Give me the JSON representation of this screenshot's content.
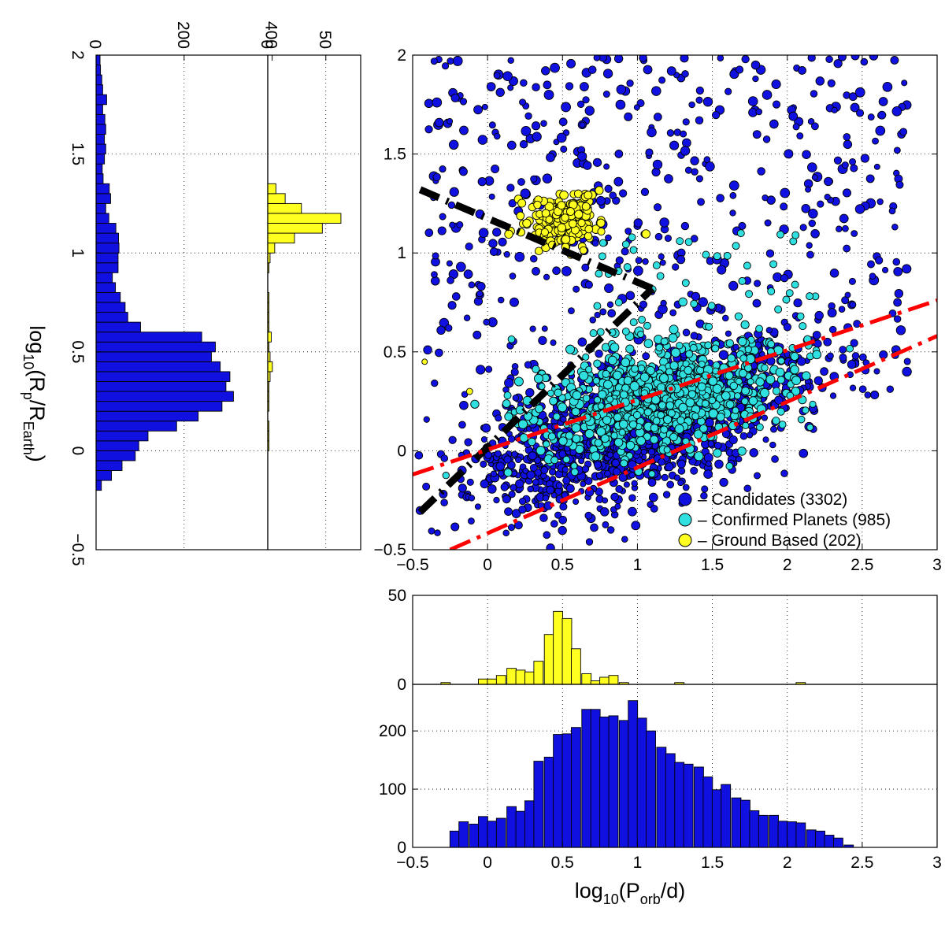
{
  "figure": {
    "ylabel": {
      "pre": "log",
      "sub1": "10",
      "mid": "(R",
      "sub2": "p",
      "mid2": "/R",
      "sub3": "Earth",
      "post": ")"
    },
    "xlabel": {
      "pre": "log",
      "sub1": "10",
      "mid": "(P",
      "sub2": "orb",
      "post": "/d)"
    }
  },
  "chart_data": [
    {
      "id": "scatter",
      "type": "scatter",
      "xlim": [
        -0.5,
        3
      ],
      "ylim": [
        -0.5,
        2
      ],
      "xticks": [
        "-0.5",
        "0",
        "0.5",
        "1",
        "1.5",
        "2",
        "2.5",
        "3"
      ],
      "yticks": [
        "-0.5",
        "0",
        "0.5",
        "1",
        "1.5",
        "2"
      ],
      "grid": true,
      "legend_position": "bottom-right",
      "series": [
        {
          "name": "Candidates (3302)",
          "color": "#1010e0",
          "count": 3302,
          "distribution": "broad cloud centred near x=1.0, y=0.3; scattered up to y=2"
        },
        {
          "name": "Confirmed Planets (985)",
          "color": "#30e0e0",
          "count": 985,
          "distribution": "concentrated near x=0.8-1.8, y=0.1-0.6"
        },
        {
          "name": "Ground Based (202)",
          "color": "#ffff20",
          "count": 202,
          "distribution": "tight cluster near x=0.45, y=1.15"
        }
      ],
      "legend": [
        {
          "color": "#1010e0",
          "label": "– Candidates (3302)"
        },
        {
          "color": "#30e0e0",
          "label": "– Confirmed Planets (985)"
        },
        {
          "color": "#ffff20",
          "label": "– Ground Based (202)"
        }
      ],
      "lines": [
        {
          "style": "black dash-dot",
          "color": "#000000",
          "points": [
            [
              -0.45,
              1.32
            ],
            [
              1.1,
              0.82
            ]
          ]
        },
        {
          "style": "black dash-dot",
          "color": "#000000",
          "points": [
            [
              -0.45,
              -0.31
            ],
            [
              1.1,
              0.82
            ]
          ]
        },
        {
          "style": "red dash-dot",
          "color": "#ff0000",
          "points": [
            [
              -0.5,
              -0.12
            ],
            [
              3,
              0.76
            ]
          ]
        },
        {
          "style": "red dash-dot",
          "color": "#ff0000",
          "points": [
            [
              -0.25,
              -0.5
            ],
            [
              3,
              0.58
            ]
          ]
        }
      ]
    },
    {
      "id": "hist-period-ground",
      "type": "bar",
      "color": "#ffff20",
      "xlim": [
        -0.5,
        3
      ],
      "ylim": [
        0,
        50
      ],
      "yticks": [
        "0",
        "50"
      ],
      "bin_width": 0.0625,
      "bin_centers": [
        -0.28,
        -0.03,
        0.03,
        0.09,
        0.16,
        0.22,
        0.28,
        0.34,
        0.41,
        0.47,
        0.53,
        0.59,
        0.66,
        0.72,
        0.78,
        0.84,
        0.91,
        1.28,
        2.09
      ],
      "values": [
        1,
        3,
        3,
        5,
        9,
        8,
        7,
        13,
        28,
        41,
        37,
        20,
        6,
        2,
        4,
        5,
        1,
        1,
        1
      ]
    },
    {
      "id": "hist-period-kepler",
      "type": "bar",
      "color": "#1010e0",
      "xlim": [
        -0.5,
        3
      ],
      "ylim": [
        0,
        280
      ],
      "yticks": [
        "0",
        "100",
        "200"
      ],
      "xticks": [
        "-0.5",
        "0",
        "0.5",
        "1",
        "1.5",
        "2",
        "2.5",
        "3"
      ],
      "bin_width": 0.0625,
      "bin_centers": [
        -0.22,
        -0.16,
        -0.09,
        -0.03,
        0.03,
        0.09,
        0.16,
        0.22,
        0.28,
        0.34,
        0.41,
        0.47,
        0.53,
        0.59,
        0.66,
        0.72,
        0.78,
        0.84,
        0.91,
        0.97,
        1.03,
        1.09,
        1.16,
        1.22,
        1.28,
        1.34,
        1.41,
        1.47,
        1.53,
        1.59,
        1.66,
        1.72,
        1.78,
        1.84,
        1.91,
        1.97,
        2.03,
        2.09,
        2.16,
        2.22,
        2.28,
        2.34,
        2.41,
        2.47,
        2.53,
        2.59,
        2.66,
        2.72,
        2.78
      ],
      "values": [
        28,
        44,
        40,
        53,
        45,
        50,
        70,
        62,
        80,
        148,
        155,
        194,
        195,
        206,
        237,
        237,
        224,
        226,
        218,
        252,
        222,
        200,
        172,
        161,
        146,
        143,
        138,
        121,
        99,
        108,
        85,
        81,
        63,
        55,
        55,
        45,
        44,
        42,
        30,
        28,
        21,
        16,
        4,
        0,
        0,
        0,
        0,
        0,
        0
      ]
    },
    {
      "id": "hist-radius-ground",
      "type": "bar",
      "orientation": "horizontal",
      "color": "#ffff20",
      "ylim": [
        -0.5,
        2
      ],
      "xlim": [
        0,
        80
      ],
      "ticks": [
        "0",
        "50"
      ],
      "bin_width": 0.05,
      "bin_centers": [
        0.025,
        0.075,
        0.125,
        0.225,
        0.275,
        0.325,
        0.375,
        0.425,
        0.475,
        0.525,
        0.575,
        0.625,
        0.675,
        0.725,
        0.775,
        0.825,
        0.875,
        0.925,
        0.975,
        1.025,
        1.075,
        1.125,
        1.175,
        1.225,
        1.275,
        1.325
      ],
      "values": [
        1,
        1,
        1,
        1,
        1,
        1,
        2,
        4,
        2,
        1,
        3,
        1,
        1,
        1,
        1,
        0,
        0,
        1,
        2,
        6,
        23,
        47,
        63,
        29,
        15,
        7
      ]
    },
    {
      "id": "hist-radius-kepler",
      "type": "bar",
      "orientation": "horizontal",
      "color": "#1010e0",
      "ylim": [
        -0.5,
        2
      ],
      "xlim": [
        0,
        390
      ],
      "ticks": [
        "0",
        "200",
        "400"
      ],
      "bin_width": 0.05,
      "bin_centers": [
        -0.175,
        -0.125,
        -0.075,
        -0.025,
        0.025,
        0.075,
        0.125,
        0.175,
        0.225,
        0.275,
        0.325,
        0.375,
        0.425,
        0.475,
        0.525,
        0.575,
        0.625,
        0.675,
        0.725,
        0.775,
        0.825,
        0.875,
        0.925,
        0.975,
        1.025,
        1.075,
        1.125,
        1.175,
        1.225,
        1.275,
        1.325,
        1.375,
        1.425,
        1.475,
        1.525,
        1.575,
        1.625,
        1.675,
        1.725,
        1.775,
        1.825,
        1.875,
        1.925,
        1.975
      ],
      "values": [
        12,
        35,
        59,
        89,
        97,
        118,
        183,
        232,
        286,
        312,
        295,
        304,
        282,
        262,
        271,
        240,
        101,
        72,
        66,
        55,
        44,
        37,
        50,
        50,
        52,
        51,
        45,
        29,
        22,
        33,
        30,
        16,
        14,
        19,
        22,
        19,
        22,
        20,
        15,
        24,
        15,
        13,
        10,
        9
      ]
    }
  ]
}
